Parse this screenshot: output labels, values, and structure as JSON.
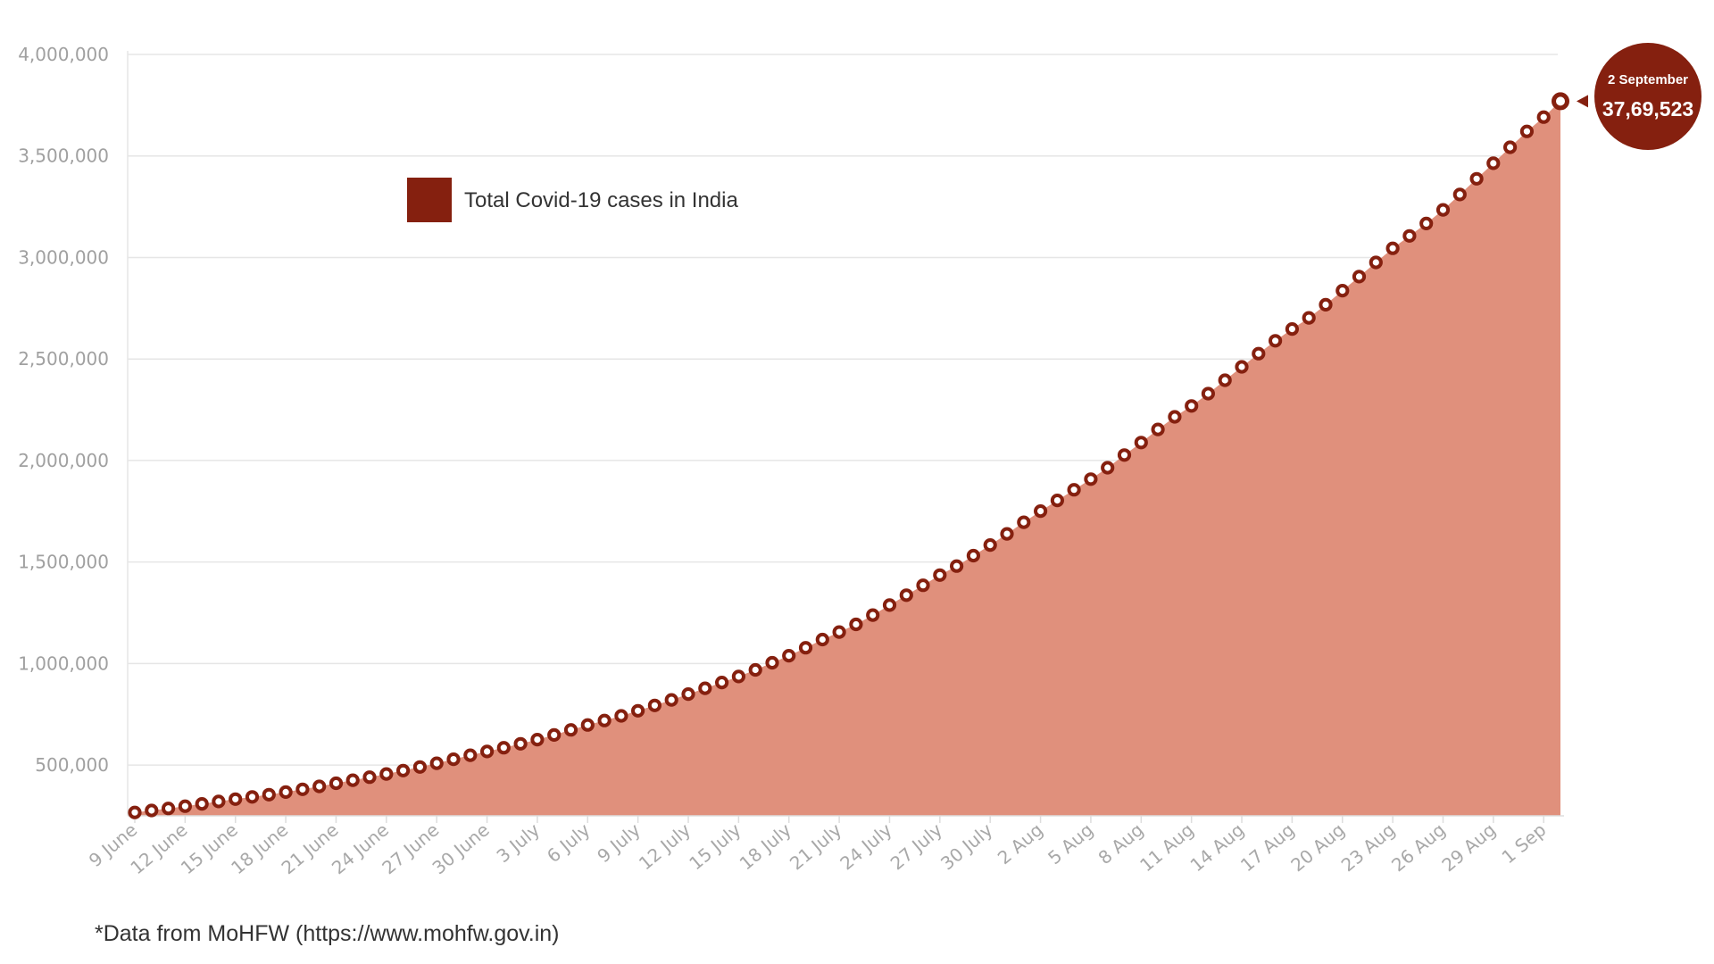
{
  "chart_data": {
    "type": "area",
    "title": "",
    "xlabel": "",
    "ylabel": "",
    "legend": {
      "label": "Total Covid-19 cases in India",
      "color": "#85200f",
      "placement": "top-left"
    },
    "ylim": [
      250000,
      4000000
    ],
    "y_tick_labels": [
      "4,000,000",
      "3,500,000",
      "3,000,000",
      "2,500,000",
      "2,000,000",
      "1,500,000",
      "1,000,000",
      "500,000"
    ],
    "y_tick_values": [
      4000000,
      3500000,
      3000000,
      2500000,
      2000000,
      1500000,
      1000000,
      500000
    ],
    "x_tick_labels": [
      "9 June",
      "12 June",
      "15 June",
      "18 June",
      "21 June",
      "24 June",
      "27 June",
      "30 June",
      "3 July",
      "6 July",
      "9 July",
      "12 July",
      "15 July",
      "18 July",
      "21 July",
      "24 July",
      "27 July",
      "30 July",
      "2 Aug",
      "5 Aug",
      "8 Aug",
      "11 Aug",
      "14 Aug",
      "17 Aug",
      "20 Aug",
      "23 Aug",
      "26 Aug",
      "29 Aug",
      "1 Sep"
    ],
    "x_start": "9 June",
    "x_end": "2 September",
    "values": [
      266598,
      276583,
      286579,
      297535,
      308993,
      320922,
      332424,
      343091,
      354065,
      366946,
      380532,
      395048,
      410461,
      425282,
      440215,
      456183,
      473105,
      490401,
      508953,
      528859,
      548318,
      566840,
      585493,
      604641,
      625544,
      648315,
      673165,
      697413,
      719665,
      742417,
      767296,
      793802,
      820916,
      849553,
      878254,
      906752,
      936181,
      968876,
      1003832,
      1038716,
      1077618,
      1118043,
      1155191,
      1193078,
      1238635,
      1287945,
      1336861,
      1385522,
      1435453,
      1480073,
      1531669,
      1583792,
      1638870,
      1695988,
      1750723,
      1803695,
      1855745,
      1908254,
      1964536,
      2027074,
      2088611,
      2153010,
      2215074,
      2268675,
      2329638,
      2395471,
      2461190,
      2526192,
      2589682,
      2647663,
      2702742,
      2767273,
      2836925,
      2905825,
      2975701,
      3044940,
      3106348,
      3167323,
      3234474,
      3310234,
      3387500,
      3463972,
      3542733,
      3621245,
      3691166,
      3769523
    ],
    "series_color": "#85200f",
    "area_fill": "#e0907c",
    "grid": true,
    "callout": {
      "date": "2 September",
      "value": "37,69,523"
    }
  },
  "footer": {
    "source_note": "*Data from MoHFW (https://www.mohfw.gov.in)"
  }
}
